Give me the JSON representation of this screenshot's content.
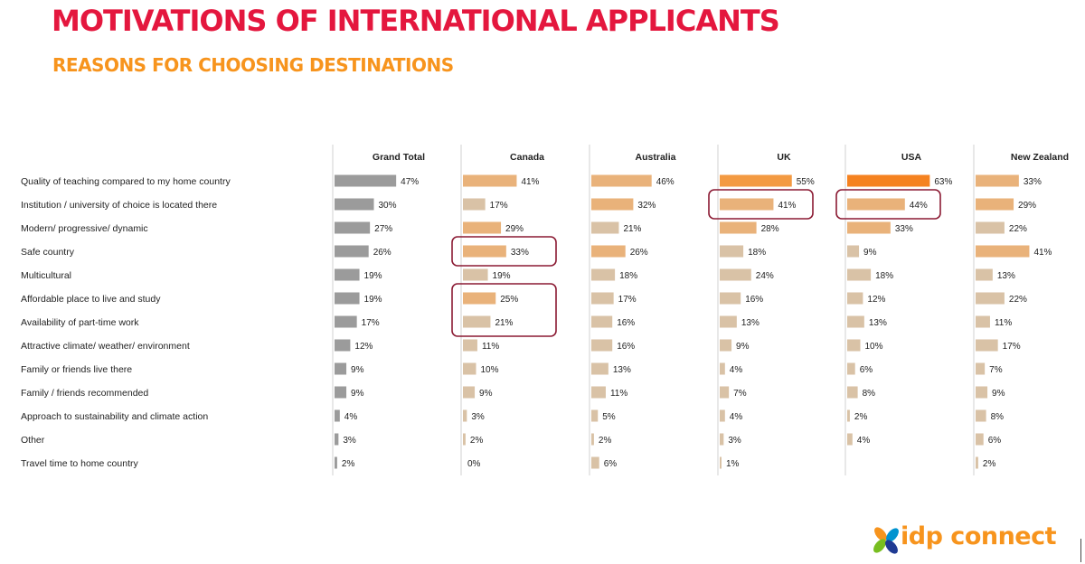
{
  "header": {
    "title": "MOTIVATIONS OF INTERNATIONAL APPLICANTS",
    "subtitle": "REASONS FOR CHOOSING DESTINATIONS"
  },
  "brand": {
    "logo_text": "idp connect"
  },
  "colors": {
    "title": "#e4173e",
    "subtitle": "#f7941d",
    "grand_total_bar": "#9b9b9b",
    "bar_level_low": "#d9c2a6",
    "bar_level_mid": "#e9b27a",
    "bar_level_high": "#f39a42",
    "bar_level_top": "#f58220",
    "highlight_box": "#8b1a33"
  },
  "chart_data": {
    "type": "bar",
    "orientation": "horizontal",
    "layout": "small-multiples",
    "value_unit": "%",
    "categories": [
      "Quality of teaching compared to my home country",
      "Institution / university of choice is located there",
      "Modern/ progressive/ dynamic",
      "Safe country",
      "Multicultural",
      "Affordable place to live and study",
      "Availability of part-time work",
      "Attractive climate/ weather/ environment",
      "Family or friends live there",
      "Family / friends recommended",
      "Approach to sustainability and climate action",
      "Other",
      "Travel time to home country"
    ],
    "series": [
      {
        "name": "Grand Total",
        "values": [
          47,
          30,
          27,
          26,
          19,
          19,
          17,
          12,
          9,
          9,
          4,
          3,
          2
        ]
      },
      {
        "name": "Canada",
        "values": [
          41,
          17,
          29,
          33,
          19,
          25,
          21,
          11,
          10,
          9,
          3,
          2,
          0
        ]
      },
      {
        "name": "Australia",
        "values": [
          46,
          32,
          21,
          26,
          18,
          17,
          16,
          16,
          13,
          11,
          5,
          2,
          6
        ]
      },
      {
        "name": "UK",
        "values": [
          55,
          41,
          28,
          18,
          24,
          16,
          13,
          9,
          4,
          7,
          4,
          3,
          1
        ]
      },
      {
        "name": "USA",
        "values": [
          63,
          44,
          33,
          9,
          18,
          12,
          13,
          10,
          6,
          8,
          2,
          4,
          null
        ]
      },
      {
        "name": "New Zealand",
        "values": [
          33,
          29,
          22,
          41,
          13,
          22,
          11,
          17,
          7,
          9,
          8,
          6,
          2
        ]
      }
    ],
    "highlighted": [
      {
        "series": "Canada",
        "categories": [
          "Safe country"
        ]
      },
      {
        "series": "Canada",
        "categories": [
          "Affordable place to live and study",
          "Availability of part-time work"
        ]
      },
      {
        "series": "UK",
        "categories": [
          "Institution / university of choice is located there"
        ]
      },
      {
        "series": "USA",
        "categories": [
          "Institution / university of choice is located there"
        ]
      }
    ],
    "grid": false,
    "legend": "none"
  }
}
